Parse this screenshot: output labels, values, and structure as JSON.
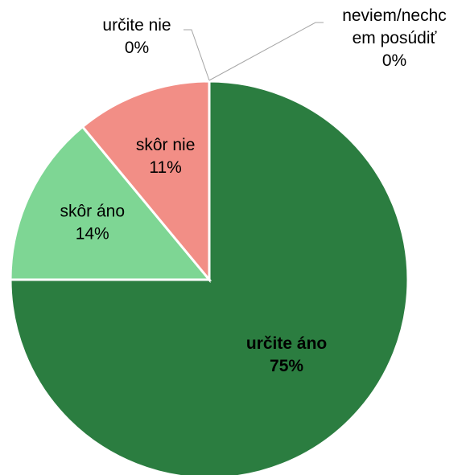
{
  "chart_data": {
    "type": "pie",
    "categories": [
      "určite áno",
      "skôr áno",
      "skôr nie",
      "určite nie",
      "neviem/nechcem posúdiť"
    ],
    "values": [
      75,
      14,
      11,
      0,
      0
    ],
    "value_labels": [
      "75%",
      "14%",
      "11%",
      "0%",
      "0%"
    ],
    "colors": [
      "#2b7d40",
      "#7ed694",
      "#f28e86",
      "#a5a5a5",
      "#5b9bd5"
    ]
  }
}
